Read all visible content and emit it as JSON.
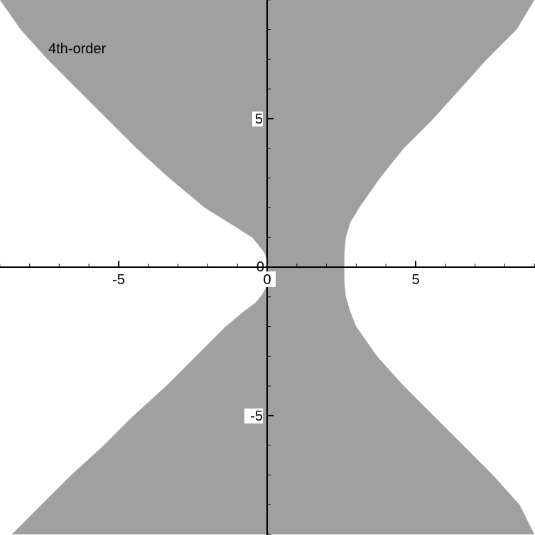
{
  "chart_data": {
    "type": "area",
    "title": "",
    "annotation": "4th-order",
    "xlabel": "",
    "ylabel": "",
    "xlim": [
      -9,
      9
    ],
    "ylim": [
      -9,
      9
    ],
    "grid": false,
    "fill_color": "#a0a0a0",
    "background_color": "#ffffff",
    "axis_color": "#000000",
    "x_ticks": [
      {
        "value": -5,
        "label": "-5"
      },
      {
        "value": 0,
        "label": "0"
      },
      {
        "value": 5,
        "label": "5"
      }
    ],
    "y_ticks": [
      {
        "value": 5,
        "label": "5"
      },
      {
        "value": 0,
        "label": "0"
      },
      {
        "value": -5,
        "label": "-5"
      }
    ],
    "minor_tick_step": 1,
    "series": [
      {
        "region": "shaded",
        "boundary_left": {
          "y": [
            -9,
            -8,
            -7,
            -6,
            -5,
            -4,
            -3,
            -2,
            -1.5,
            -1.2,
            -0.9,
            -0.6,
            -0.4,
            -0.2,
            0,
            0.2,
            0.5,
            1,
            1.5,
            2,
            3,
            4,
            5,
            6,
            7,
            8,
            9
          ],
          "x": [
            -8.6,
            -7.6,
            -6.6,
            -5.5,
            -4.5,
            -3.4,
            -2.4,
            -1.4,
            -0.8,
            -0.4,
            -0.15,
            0,
            0,
            0,
            0,
            0,
            -0.1,
            -0.5,
            -1.3,
            -2.1,
            -3.3,
            -4.4,
            -5.4,
            -6.4,
            -7.4,
            -8.3,
            -9
          ]
        },
        "boundary_right": {
          "y": [
            -9,
            -8,
            -7,
            -6,
            -5,
            -4,
            -3,
            -2,
            -1.5,
            -1,
            -0.5,
            0,
            0.5,
            1,
            1.5,
            2,
            3,
            4,
            5,
            6,
            7,
            8,
            9
          ],
          "x": [
            9,
            8.5,
            7.6,
            6.6,
            5.6,
            4.6,
            3.7,
            3.0,
            2.8,
            2.65,
            2.6,
            2.6,
            2.6,
            2.65,
            2.8,
            3.1,
            3.8,
            4.6,
            5.6,
            6.5,
            7.4,
            8.4,
            9
          ]
        }
      }
    ]
  }
}
